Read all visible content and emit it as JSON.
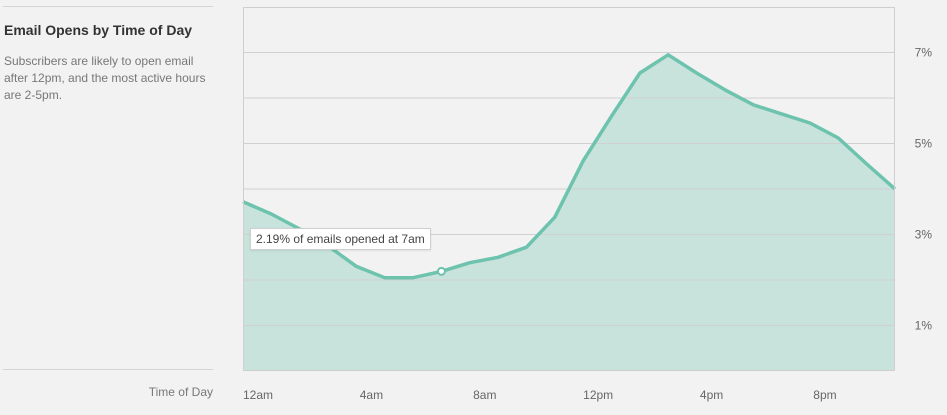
{
  "sidebar": {
    "title": "Email Opens by Time of Day",
    "description": "Subscribers are likely to open email after 12pm, and the most active hours are 2-5pm.",
    "x_axis_label": "Time of Day"
  },
  "tooltip": {
    "text": "2.19% of emails opened at 7am"
  },
  "colors": {
    "line": "#6dc3ad",
    "fill": "#c8e2dc",
    "grid": "#d0d0d0",
    "frame": "#cfcfcf"
  },
  "chart_data": {
    "type": "area",
    "x": [
      0,
      1,
      2,
      3,
      4,
      5,
      6,
      7,
      8,
      9,
      10,
      11,
      12,
      13,
      14,
      15,
      16,
      17,
      18,
      19,
      20,
      21,
      22,
      23
    ],
    "values": [
      3.72,
      3.45,
      3.12,
      2.75,
      2.3,
      2.05,
      2.05,
      2.19,
      2.38,
      2.5,
      2.72,
      3.38,
      4.62,
      5.6,
      6.55,
      6.95,
      6.55,
      6.18,
      5.85,
      5.65,
      5.45,
      5.12,
      4.55,
      4.0
    ],
    "xticks": [
      {
        "value": 0,
        "label": "12am"
      },
      {
        "value": 4,
        "label": "4am"
      },
      {
        "value": 8,
        "label": "8am"
      },
      {
        "value": 12,
        "label": "12pm"
      },
      {
        "value": 16,
        "label": "4pm"
      },
      {
        "value": 20,
        "label": "8pm"
      }
    ],
    "yticks": [
      {
        "value": 1,
        "label": "1%"
      },
      {
        "value": 3,
        "label": "3%"
      },
      {
        "value": 5,
        "label": "5%"
      },
      {
        "value": 7,
        "label": "7%"
      }
    ],
    "gridlines": [
      1,
      2,
      3,
      4,
      5,
      6,
      7
    ],
    "xlim": [
      0,
      23
    ],
    "ylim": [
      0,
      8
    ],
    "highlight_index": 7,
    "grid": true
  }
}
